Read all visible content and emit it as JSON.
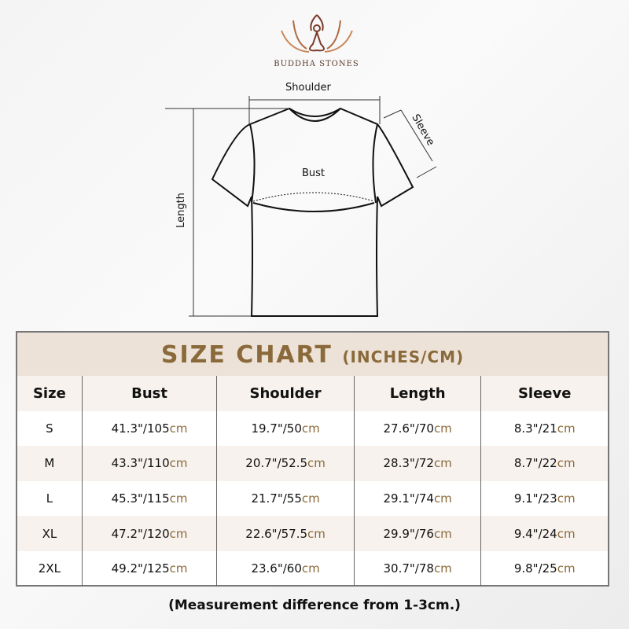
{
  "brand": {
    "name": "BUDDHA STONES",
    "logo_colors": [
      "#7a3b2a",
      "#c9885a"
    ]
  },
  "diagram": {
    "labels": {
      "shoulder": "Shoulder",
      "sleeve": "Sleeve",
      "bust": "Bust",
      "length": "Length"
    }
  },
  "table": {
    "title": "SIZE CHART",
    "title_units": "(INCHES/CM)",
    "headers": [
      "Size",
      "Bust",
      "Shoulder",
      "Length",
      "Sleeve"
    ],
    "rows": [
      {
        "size": "S",
        "values": [
          {
            "in": "41.3\"/105",
            "cm": "cm"
          },
          {
            "in": "19.7\"/50",
            "cm": "cm"
          },
          {
            "in": "27.6\"/70",
            "cm": "cm"
          },
          {
            "in": "8.3\"/21",
            "cm": "cm"
          }
        ]
      },
      {
        "size": "M",
        "values": [
          {
            "in": "43.3\"/110",
            "cm": "cm"
          },
          {
            "in": "20.7\"/52.5",
            "cm": "cm"
          },
          {
            "in": "28.3\"/72",
            "cm": "cm"
          },
          {
            "in": "8.7\"/22",
            "cm": "cm"
          }
        ]
      },
      {
        "size": "L",
        "values": [
          {
            "in": "45.3\"/115",
            "cm": "cm"
          },
          {
            "in": "21.7\"/55",
            "cm": "cm"
          },
          {
            "in": "29.1\"/74",
            "cm": "cm"
          },
          {
            "in": "9.1\"/23",
            "cm": "cm"
          }
        ]
      },
      {
        "size": "XL",
        "values": [
          {
            "in": "47.2\"/120",
            "cm": "cm"
          },
          {
            "in": "22.6\"/57.5",
            "cm": "cm"
          },
          {
            "in": "29.9\"/76",
            "cm": "cm"
          },
          {
            "in": "9.4\"/24",
            "cm": "cm"
          }
        ]
      },
      {
        "size": "2XL",
        "values": [
          {
            "in": "49.2\"/125",
            "cm": "cm"
          },
          {
            "in": "23.6\"/60",
            "cm": "cm"
          },
          {
            "in": "30.7\"/78",
            "cm": "cm"
          },
          {
            "in": "9.8\"/25",
            "cm": "cm"
          }
        ]
      }
    ],
    "accent": "#8a6a3a"
  },
  "note": "(Measurement difference from 1-3cm.)"
}
